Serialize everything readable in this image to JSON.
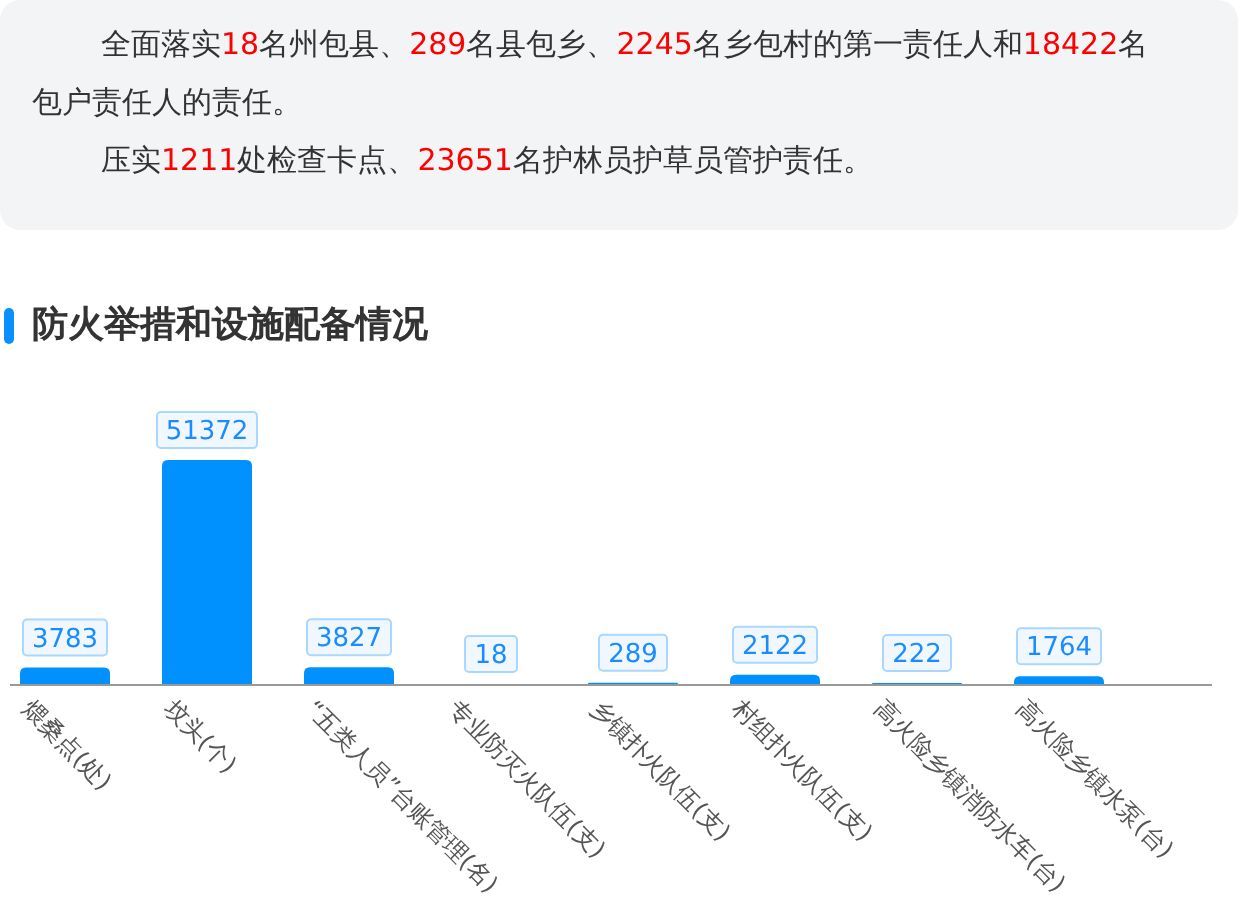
{
  "chart_data": {
    "type": "bar",
    "title": "防火举措和设施配备情况",
    "annotations": [
      "全面落实18名州包县、289名县包乡、2245名乡包村的第一责任人和18422名包户责任人的责任。",
      "压实1211处检查卡点、23651名护林员护草员管护责任。"
    ],
    "categories": [
      "煨桑点(处)",
      "坟头(个)",
      "“五类人员”台账管理(名)",
      "专业防灭火队伍(支)",
      "乡镇扑火队伍(支)",
      "村组扑火队伍(支)",
      "高火险乡镇消防水车(台)",
      "高火险乡镇水泵(台)"
    ],
    "values": [
      3783,
      51372,
      3827,
      18,
      289,
      2122,
      222,
      1764
    ],
    "color": "#0091ff",
    "data_labels": true
  }
}
